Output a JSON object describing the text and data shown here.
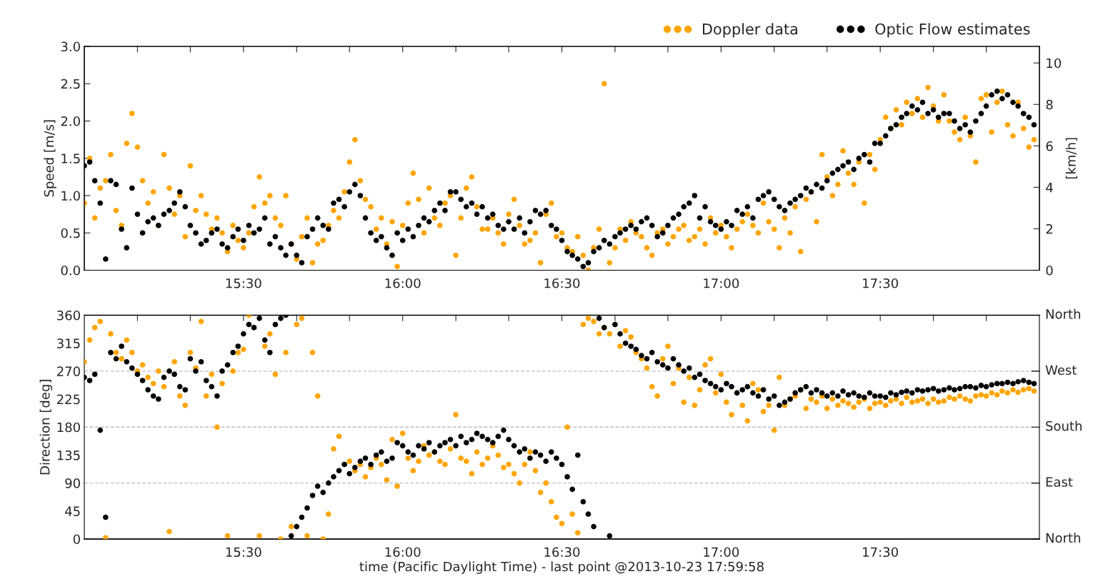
{
  "chart_data": [
    {
      "type": "scatter",
      "ylabel": "Speed [m/s]",
      "y2label": "[km/h]",
      "legend": "top right",
      "marker": "circle",
      "grid": false,
      "xlim": [
        15.0,
        18.0
      ],
      "xticks": [
        {
          "value": 15.167,
          "label": null
        },
        {
          "value": 15.333,
          "label": null
        },
        {
          "value": 15.5,
          "label": "15:30"
        },
        {
          "value": 15.667,
          "label": null
        },
        {
          "value": 15.833,
          "label": null
        },
        {
          "value": 16.0,
          "label": "16:00"
        },
        {
          "value": 16.167,
          "label": null
        },
        {
          "value": 16.333,
          "label": null
        },
        {
          "value": 16.5,
          "label": "16:30"
        },
        {
          "value": 16.667,
          "label": null
        },
        {
          "value": 16.833,
          "label": null
        },
        {
          "value": 17.0,
          "label": "17:00"
        },
        {
          "value": 17.167,
          "label": null
        },
        {
          "value": 17.333,
          "label": null
        },
        {
          "value": 17.5,
          "label": "17:30"
        },
        {
          "value": 17.667,
          "label": null
        },
        {
          "value": 17.833,
          "label": null
        }
      ],
      "ylim": [
        0,
        3.0
      ],
      "yticks": [
        {
          "value": 0,
          "label": "0.0"
        },
        {
          "value": 0.5,
          "label": "0.5"
        },
        {
          "value": 1.0,
          "label": "1.0"
        },
        {
          "value": 1.5,
          "label": "1.5"
        },
        {
          "value": 2.0,
          "label": "2.0"
        },
        {
          "value": 2.5,
          "label": "2.5"
        },
        {
          "value": 3.0,
          "label": "3.0"
        }
      ],
      "y2lim": [
        0,
        10.8
      ],
      "y2ticks": [
        0,
        2,
        4,
        6,
        8,
        10
      ],
      "x": [
        15.0,
        15.017,
        15.033,
        15.05,
        15.067,
        15.083,
        15.1,
        15.117,
        15.133,
        15.15,
        15.167,
        15.183,
        15.2,
        15.217,
        15.233,
        15.25,
        15.267,
        15.283,
        15.3,
        15.317,
        15.333,
        15.35,
        15.367,
        15.383,
        15.4,
        15.417,
        15.433,
        15.45,
        15.467,
        15.483,
        15.5,
        15.517,
        15.533,
        15.55,
        15.567,
        15.583,
        15.6,
        15.617,
        15.633,
        15.65,
        15.667,
        15.683,
        15.7,
        15.717,
        15.733,
        15.75,
        15.767,
        15.783,
        15.8,
        15.817,
        15.833,
        15.85,
        15.867,
        15.883,
        15.9,
        15.917,
        15.933,
        15.95,
        15.967,
        15.983,
        16.0,
        16.017,
        16.033,
        16.05,
        16.067,
        16.083,
        16.1,
        16.117,
        16.133,
        16.15,
        16.167,
        16.183,
        16.2,
        16.217,
        16.233,
        16.25,
        16.267,
        16.283,
        16.3,
        16.317,
        16.333,
        16.35,
        16.367,
        16.383,
        16.4,
        16.417,
        16.433,
        16.45,
        16.467,
        16.483,
        16.5,
        16.517,
        16.533,
        16.55,
        16.567,
        16.583,
        16.6,
        16.617,
        16.633,
        16.65,
        16.667,
        16.683,
        16.7,
        16.717,
        16.733,
        16.75,
        16.767,
        16.783,
        16.8,
        16.817,
        16.833,
        16.85,
        16.867,
        16.883,
        16.9,
        16.917,
        16.933,
        16.95,
        16.967,
        16.983,
        17.0,
        17.017,
        17.033,
        17.05,
        17.067,
        17.083,
        17.1,
        17.117,
        17.133,
        17.15,
        17.167,
        17.183,
        17.2,
        17.217,
        17.233,
        17.25,
        17.267,
        17.283,
        17.3,
        17.317,
        17.333,
        17.35,
        17.367,
        17.383,
        17.4,
        17.417,
        17.433,
        17.45,
        17.467,
        17.483,
        17.5,
        17.517,
        17.533,
        17.55,
        17.567,
        17.583,
        17.6,
        17.617,
        17.633,
        17.65,
        17.667,
        17.683,
        17.7,
        17.717,
        17.733,
        17.75,
        17.767,
        17.783,
        17.8,
        17.817,
        17.833,
        17.85,
        17.867,
        17.883,
        17.9,
        17.917,
        17.933,
        17.95,
        17.967,
        17.983
      ],
      "series": [
        {
          "name": "Doppler data",
          "color": "#ffa500",
          "values": [
            0.9,
            1.5,
            0.7,
            1.1,
            1.2,
            1.55,
            0.8,
            0.6,
            1.7,
            2.1,
            1.65,
            1.2,
            0.9,
            1.05,
            0.6,
            1.55,
            1.1,
            0.75,
            1.0,
            0.45,
            1.4,
            0.8,
            1.0,
            0.75,
            0.55,
            0.7,
            0.5,
            0.25,
            0.6,
            0.4,
            0.3,
            0.5,
            0.85,
            1.25,
            0.9,
            1.0,
            0.7,
            0.6,
            1.0,
            0.35,
            0.15,
            0.45,
            0.7,
            0.1,
            0.35,
            0.4,
            0.6,
            0.8,
            0.7,
            1.05,
            1.45,
            1.75,
            1.2,
            0.95,
            0.85,
            0.55,
            0.7,
            0.35,
            0.65,
            0.05,
            0.6,
            0.9,
            1.3,
            0.95,
            0.5,
            1.1,
            0.7,
            0.6,
            0.9,
            1.0,
            0.2,
            0.7,
            1.1,
            1.25,
            0.85,
            0.55,
            0.55,
            0.7,
            0.5,
            0.35,
            0.75,
            0.95,
            0.6,
            0.35,
            0.4,
            0.5,
            0.1,
            0.75,
            0.9,
            0.45,
            0.5,
            0.3,
            0.25,
            0.45,
            0.2,
            0.0,
            0.3,
            0.55,
            2.5,
            0.1,
            0.3,
            0.55,
            0.4,
            0.65,
            0.5,
            0.45,
            0.3,
            0.2,
            0.5,
            0.55,
            0.35,
            0.45,
            0.55,
            0.6,
            0.4,
            0.45,
            0.55,
            0.35,
            0.7,
            0.5,
            0.6,
            0.45,
            0.3,
            0.55,
            0.65,
            0.75,
            0.6,
            0.5,
            0.9,
            0.65,
            0.55,
            0.3,
            0.7,
            0.5,
            0.85,
            0.25,
            0.95,
            1.05,
            0.65,
            1.55,
            1.25,
            1.0,
            1.15,
            1.6,
            1.3,
            1.15,
            1.45,
            0.9,
            1.55,
            1.35,
            1.75,
            2.05,
            1.9,
            2.15,
            1.95,
            2.25,
            2.1,
            2.3,
            2.05,
            2.45,
            2.2,
            2.0,
            2.35,
            2.0,
            1.85,
            1.75,
            2.05,
            1.8,
            1.45,
            2.3,
            2.35,
            1.85,
            2.25,
            2.4,
            1.95,
            1.8,
            2.25,
            1.9,
            1.65,
            1.75
          ]
        },
        {
          "name": "Optic Flow estimates",
          "color": "#000000",
          "values": [
            1.4,
            1.45,
            1.2,
            0.9,
            0.15,
            1.2,
            1.15,
            0.55,
            0.3,
            1.1,
            0.75,
            0.5,
            0.65,
            0.7,
            0.6,
            0.75,
            0.8,
            0.9,
            1.05,
            0.85,
            0.6,
            0.5,
            0.35,
            0.4,
            0.5,
            0.55,
            0.35,
            0.3,
            0.45,
            0.55,
            0.4,
            0.6,
            0.5,
            0.55,
            0.7,
            0.35,
            0.45,
            0.3,
            0.2,
            0.35,
            0.2,
            0.1,
            0.45,
            0.55,
            0.7,
            0.6,
            0.55,
            0.9,
            0.95,
            0.85,
            1.05,
            1.15,
            1.0,
            0.7,
            0.5,
            0.4,
            0.45,
            0.3,
            0.2,
            0.5,
            0.4,
            0.55,
            0.45,
            0.6,
            0.7,
            0.65,
            0.8,
            0.9,
            0.8,
            1.05,
            1.05,
            0.95,
            0.85,
            0.9,
            0.75,
            0.85,
            0.7,
            0.75,
            0.6,
            0.55,
            0.65,
            0.55,
            0.7,
            0.5,
            0.65,
            0.8,
            0.75,
            0.8,
            0.6,
            0.55,
            0.4,
            0.25,
            0.2,
            0.15,
            0.05,
            0.1,
            0.25,
            0.3,
            0.4,
            0.35,
            0.45,
            0.5,
            0.55,
            0.6,
            0.55,
            0.65,
            0.7,
            0.6,
            0.45,
            0.5,
            0.6,
            0.7,
            0.75,
            0.85,
            0.9,
            1.0,
            0.7,
            0.85,
            0.65,
            0.6,
            0.55,
            0.65,
            0.6,
            0.8,
            0.75,
            0.85,
            0.7,
            0.95,
            1.0,
            1.05,
            0.95,
            0.85,
            0.8,
            0.9,
            0.95,
            1.0,
            1.1,
            1.05,
            1.15,
            1.1,
            1.2,
            1.3,
            1.35,
            1.4,
            1.45,
            1.35,
            1.5,
            1.55,
            1.45,
            1.7,
            1.7,
            1.8,
            1.9,
            1.95,
            2.05,
            2.1,
            2.2,
            2.15,
            2.25,
            2.1,
            2.15,
            2.05,
            2.1,
            2.1,
            2.0,
            1.9,
            1.95,
            1.85,
            2.0,
            2.1,
            2.2,
            2.35,
            2.4,
            2.3,
            2.35,
            2.25,
            2.2,
            2.1,
            2.05,
            1.95
          ]
        }
      ]
    },
    {
      "type": "scatter",
      "ylabel": "Direction [deg]",
      "xlabel": "time (Pacific Daylight Time) - last point @2013-10-23 17:59:58",
      "marker": "circle",
      "grid": false,
      "xlim": [
        15.0,
        18.0
      ],
      "xticks": [
        {
          "value": 15.167,
          "label": null
        },
        {
          "value": 15.333,
          "label": null
        },
        {
          "value": 15.5,
          "label": "15:30"
        },
        {
          "value": 15.667,
          "label": null
        },
        {
          "value": 15.833,
          "label": null
        },
        {
          "value": 16.0,
          "label": "16:00"
        },
        {
          "value": 16.167,
          "label": null
        },
        {
          "value": 16.333,
          "label": null
        },
        {
          "value": 16.5,
          "label": "16:30"
        },
        {
          "value": 16.667,
          "label": null
        },
        {
          "value": 16.833,
          "label": null
        },
        {
          "value": 17.0,
          "label": "17:00"
        },
        {
          "value": 17.167,
          "label": null
        },
        {
          "value": 17.333,
          "label": null
        },
        {
          "value": 17.5,
          "label": "17:30"
        },
        {
          "value": 17.667,
          "label": null
        },
        {
          "value": 17.833,
          "label": null
        }
      ],
      "ylim": [
        0,
        360
      ],
      "yticks": [
        0,
        45,
        90,
        135,
        180,
        225,
        270,
        315,
        360
      ],
      "ref_lines": [
        {
          "axis": "y",
          "value": 0,
          "label": "North",
          "color": "#000000"
        },
        {
          "axis": "y",
          "value": 90,
          "label": "East",
          "color": "#c0c0c0",
          "line_style": "dashed"
        },
        {
          "axis": "y",
          "value": 180,
          "label": "South",
          "color": "#c0c0c0",
          "line_style": "dashed"
        },
        {
          "axis": "y",
          "value": 270,
          "label": "West",
          "color": "#c0c0c0",
          "line_style": "dashed"
        },
        {
          "axis": "y",
          "value": 360,
          "label": "North",
          "color": "#000000"
        }
      ],
      "x": [
        15.0,
        15.017,
        15.033,
        15.05,
        15.067,
        15.083,
        15.1,
        15.117,
        15.133,
        15.15,
        15.167,
        15.183,
        15.2,
        15.217,
        15.233,
        15.25,
        15.267,
        15.283,
        15.3,
        15.317,
        15.333,
        15.35,
        15.367,
        15.383,
        15.4,
        15.417,
        15.433,
        15.45,
        15.467,
        15.483,
        15.5,
        15.517,
        15.533,
        15.55,
        15.567,
        15.583,
        15.6,
        15.617,
        15.633,
        15.65,
        15.667,
        15.683,
        15.7,
        15.717,
        15.733,
        15.75,
        15.767,
        15.783,
        15.8,
        15.817,
        15.833,
        15.85,
        15.867,
        15.883,
        15.9,
        15.917,
        15.933,
        15.95,
        15.967,
        15.983,
        16.0,
        16.017,
        16.033,
        16.05,
        16.067,
        16.083,
        16.1,
        16.117,
        16.133,
        16.15,
        16.167,
        16.183,
        16.2,
        16.217,
        16.233,
        16.25,
        16.267,
        16.283,
        16.3,
        16.317,
        16.333,
        16.35,
        16.367,
        16.383,
        16.4,
        16.417,
        16.433,
        16.45,
        16.467,
        16.483,
        16.5,
        16.517,
        16.533,
        16.55,
        16.567,
        16.583,
        16.6,
        16.617,
        16.633,
        16.65,
        16.667,
        16.683,
        16.7,
        16.717,
        16.733,
        16.75,
        16.767,
        16.783,
        16.8,
        16.817,
        16.833,
        16.85,
        16.867,
        16.883,
        16.9,
        16.917,
        16.933,
        16.95,
        16.967,
        16.983,
        17.0,
        17.017,
        17.033,
        17.05,
        17.067,
        17.083,
        17.1,
        17.117,
        17.133,
        17.15,
        17.167,
        17.183,
        17.2,
        17.217,
        17.233,
        17.25,
        17.267,
        17.283,
        17.3,
        17.317,
        17.333,
        17.35,
        17.367,
        17.383,
        17.4,
        17.417,
        17.433,
        17.45,
        17.467,
        17.483,
        17.5,
        17.517,
        17.533,
        17.55,
        17.567,
        17.583,
        17.6,
        17.617,
        17.633,
        17.65,
        17.667,
        17.683,
        17.7,
        17.717,
        17.733,
        17.75,
        17.767,
        17.783,
        17.8,
        17.817,
        17.833,
        17.85,
        17.867,
        17.883,
        17.9,
        17.917,
        17.933,
        17.95,
        17.967,
        17.983
      ],
      "series": [
        {
          "color": "#ffa500",
          "values": [
            285,
            320,
            340,
            350,
            2,
            330,
            300,
            290,
            320,
            300,
            270,
            280,
            260,
            250,
            270,
            245,
            12,
            285,
            230,
            215,
            300,
            275,
            350,
            230,
            265,
            180,
            250,
            5,
            270,
            300,
            305,
            360,
            340,
            5,
            310,
            330,
            265,
            0,
            300,
            20,
            345,
            355,
            5,
            300,
            230,
            0,
            40,
            145,
            165,
            120,
            125,
            110,
            120,
            100,
            115,
            130,
            120,
            95,
            160,
            85,
            170,
            130,
            110,
            125,
            150,
            135,
            140,
            125,
            120,
            145,
            200,
            130,
            125,
            105,
            140,
            120,
            130,
            150,
            135,
            115,
            120,
            105,
            90,
            120,
            140,
            110,
            75,
            90,
            60,
            35,
            25,
            180,
            40,
            10,
            345,
            355,
            350,
            330,
            340,
            330,
            345,
            310,
            335,
            325,
            300,
            290,
            275,
            245,
            230,
            290,
            310,
            250,
            275,
            220,
            260,
            215,
            240,
            280,
            290,
            235,
            265,
            220,
            200,
            235,
            215,
            190,
            250,
            240,
            205,
            215,
            175,
            260,
            215,
            225,
            230,
            240,
            210,
            225,
            220,
            230,
            210,
            225,
            215,
            222,
            218,
            212,
            220,
            225,
            210,
            218,
            220,
            215,
            222,
            225,
            218,
            228,
            220,
            222,
            225,
            218,
            225,
            220,
            222,
            228,
            225,
            230,
            225,
            222,
            230,
            232,
            230,
            235,
            232,
            238,
            235,
            240,
            236,
            240,
            242,
            238
          ]
        },
        {
          "color": "#000000",
          "values": [
            260,
            255,
            265,
            175,
            35,
            300,
            290,
            310,
            285,
            275,
            265,
            255,
            240,
            230,
            225,
            260,
            270,
            265,
            245,
            240,
            290,
            270,
            285,
            255,
            245,
            230,
            270,
            280,
            300,
            310,
            330,
            345,
            340,
            355,
            320,
            300,
            345,
            355,
            360,
            5,
            20,
            35,
            50,
            70,
            85,
            75,
            90,
            100,
            110,
            120,
            105,
            115,
            125,
            130,
            120,
            135,
            140,
            125,
            130,
            155,
            150,
            140,
            135,
            150,
            145,
            155,
            140,
            150,
            155,
            160,
            150,
            165,
            155,
            160,
            170,
            165,
            160,
            155,
            165,
            175,
            160,
            150,
            140,
            145,
            130,
            140,
            135,
            125,
            140,
            130,
            120,
            100,
            80,
            135,
            60,
            40,
            20,
            355,
            340,
            5,
            345,
            330,
            315,
            310,
            305,
            295,
            290,
            300,
            285,
            280,
            275,
            290,
            280,
            270,
            275,
            260,
            265,
            255,
            250,
            245,
            240,
            250,
            245,
            235,
            240,
            245,
            235,
            230,
            240,
            225,
            230,
            215,
            220,
            225,
            235,
            240,
            245,
            235,
            240,
            235,
            230,
            235,
            230,
            238,
            232,
            235,
            230,
            228,
            235,
            230,
            230,
            228,
            235,
            232,
            236,
            238,
            235,
            240,
            238,
            240,
            242,
            238,
            240,
            243,
            240,
            242,
            245,
            245,
            243,
            247,
            245,
            248,
            250,
            250,
            252,
            250,
            253,
            255,
            252,
            250
          ]
        }
      ]
    }
  ]
}
